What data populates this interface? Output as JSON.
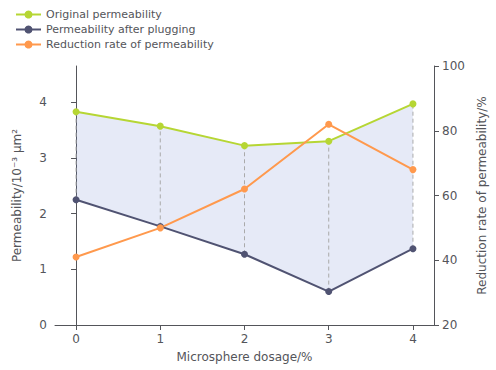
{
  "chart_data": {
    "type": "line",
    "x": [
      0,
      1,
      2,
      3,
      4
    ],
    "xlabel": "Microsphere dosage/%",
    "ylabel": "Permeability/10⁻³ μm²",
    "y2label": "Reduction rate of permeability/%",
    "series": [
      {
        "name": "Original permeability",
        "values": [
          3.83,
          3.57,
          3.22,
          3.3,
          3.97
        ]
      },
      {
        "name": "Permeability after plugging",
        "values": [
          2.25,
          1.77,
          1.27,
          0.6,
          1.37
        ]
      },
      {
        "name": "Reduction rate of permeability",
        "values": [
          41,
          50,
          62,
          82,
          68
        ],
        "axis": "y2"
      }
    ],
    "xlim": [
      -0.25,
      4.25
    ],
    "xticks": [
      0,
      1,
      2,
      3,
      4
    ],
    "ylim": [
      0,
      4.65
    ],
    "yticks": [
      0,
      1,
      2,
      3,
      4
    ],
    "y2lim": [
      20,
      100
    ],
    "y2ticks": [
      20,
      40,
      60,
      80,
      100
    ],
    "grid": false,
    "legend": "upper left",
    "marker": "circle"
  }
}
